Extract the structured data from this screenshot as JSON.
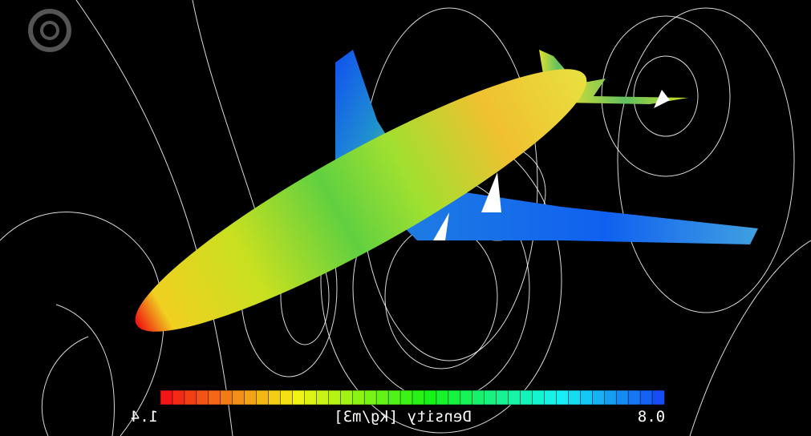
{
  "colorbar": {
    "left_label": "1.4",
    "title": "Density [kg/m3]",
    "right_label": "0.8"
  }
}
